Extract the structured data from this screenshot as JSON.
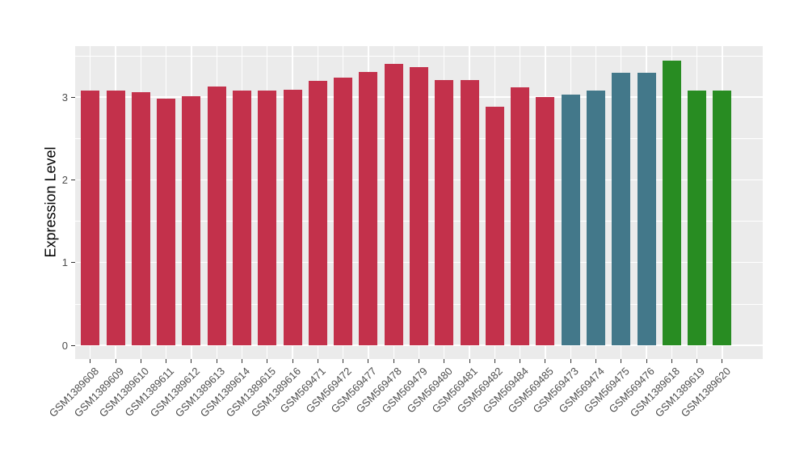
{
  "chart_data": {
    "type": "bar",
    "title": "",
    "xlabel": "",
    "ylabel": "Expression Level",
    "categories": [
      "GSM1389608",
      "GSM1389609",
      "GSM1389610",
      "GSM1389611",
      "GSM1389612",
      "GSM1389613",
      "GSM1389614",
      "GSM1389615",
      "GSM1389616",
      "GSM569471",
      "GSM569472",
      "GSM569477",
      "GSM569478",
      "GSM569479",
      "GSM569480",
      "GSM569481",
      "GSM569482",
      "GSM569484",
      "GSM569485",
      "GSM569473",
      "GSM569474",
      "GSM569475",
      "GSM569476",
      "GSM1389618",
      "GSM1389619",
      "GSM1389620"
    ],
    "values": [
      3.08,
      3.08,
      3.06,
      2.98,
      3.01,
      3.13,
      3.08,
      3.08,
      3.09,
      3.2,
      3.24,
      3.3,
      3.4,
      3.36,
      3.21,
      3.21,
      2.88,
      3.12,
      3.0,
      3.03,
      3.08,
      3.29,
      3.29,
      3.44,
      3.08,
      3.08
    ],
    "bar_colors": [
      "#C3314B",
      "#C3314B",
      "#C3314B",
      "#C3314B",
      "#C3314B",
      "#C3314B",
      "#C3314B",
      "#C3314B",
      "#C3314B",
      "#C3314B",
      "#C3314B",
      "#C3314B",
      "#C3314B",
      "#C3314B",
      "#C3314B",
      "#C3314B",
      "#C3314B",
      "#C3314B",
      "#C3314B",
      "#43788A",
      "#43788A",
      "#43788A",
      "#43788A",
      "#288C22",
      "#288C22",
      "#288C22"
    ],
    "y_ticks": [
      0,
      1,
      2,
      3
    ],
    "y_minor_ticks": [
      0.5,
      1.5,
      2.5,
      3.5
    ],
    "ylim": [
      0,
      3.62
    ],
    "grid": "white major and minor gridlines on gray panel",
    "legend_position": "none"
  },
  "style": {
    "background": "#FFFFFF",
    "panel_background": "#EBEBEB",
    "grid_major_color": "#FFFFFF",
    "grid_minor_color": "#FFFFFF",
    "axis_text_color": "#4D4D4D",
    "axis_title_color": "#000000",
    "tick_mark_color": "#333333",
    "bar_color_red": "#C3314B",
    "bar_color_teal": "#43788A",
    "bar_color_green": "#288C22"
  }
}
